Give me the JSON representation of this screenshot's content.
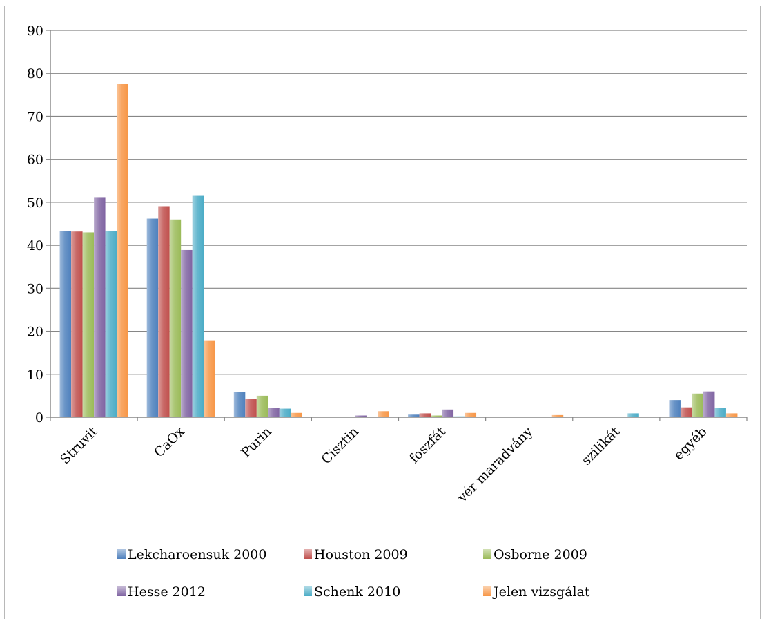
{
  "chart_data": {
    "type": "bar",
    "categories": [
      "Struvit",
      "CaOx",
      "Purin",
      "Cisztin",
      "foszfát",
      "vér maradvány",
      "szilikát",
      "egyéb"
    ],
    "series": [
      {
        "name": "Lekcharoensuk 2000",
        "color": "#4f81bd",
        "values": [
          43.3,
          46.2,
          5.8,
          0.1,
          0.6,
          0.0,
          0.0,
          4.0
        ]
      },
      {
        "name": "Houston 2009",
        "color": "#c0504d",
        "values": [
          43.2,
          49.1,
          4.2,
          0.1,
          0.9,
          0.1,
          0.1,
          2.3
        ]
      },
      {
        "name": "Osborne 2009",
        "color": "#9bbb59",
        "values": [
          43.0,
          46.0,
          5.0,
          0.0,
          0.4,
          0.0,
          0.0,
          5.5
        ]
      },
      {
        "name": "Hesse 2012",
        "color": "#8064a2",
        "values": [
          51.2,
          38.9,
          2.1,
          0.4,
          1.8,
          0.0,
          0.1,
          6.0
        ]
      },
      {
        "name": "Schenk 2010",
        "color": "#4bacc6",
        "values": [
          43.3,
          51.5,
          2.0,
          0.1,
          0.2,
          0.0,
          0.9,
          2.2
        ]
      },
      {
        "name": "Jelen vizsgálat",
        "color": "#f79646",
        "values": [
          77.5,
          17.9,
          1.0,
          1.4,
          1.0,
          0.5,
          0.1,
          0.9
        ]
      }
    ],
    "ylim": [
      0,
      90
    ],
    "yticks": [
      0,
      10,
      20,
      30,
      40,
      50,
      60,
      70,
      80,
      90
    ],
    "grid": true,
    "legend": "bottom",
    "title": "",
    "xlabel": "",
    "ylabel": ""
  }
}
